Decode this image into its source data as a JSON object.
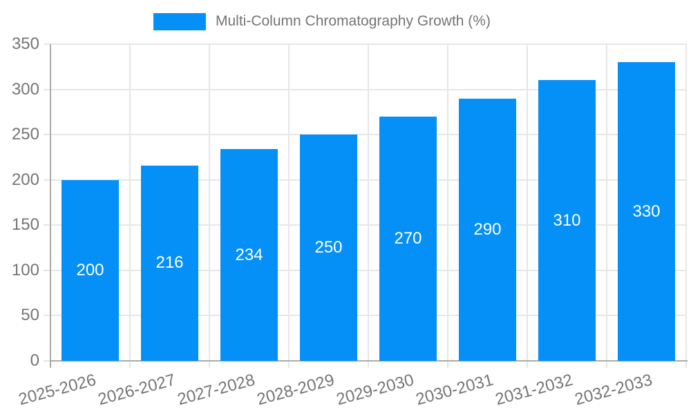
{
  "legend": {
    "label": "Multi-Column Chromatography Growth (%)"
  },
  "chart_data": {
    "type": "bar",
    "title": "Multi-Column Chromatography Growth (%)",
    "categories": [
      "2025-2026",
      "2026-2027",
      "2027-2028",
      "2028-2029",
      "2029-2030",
      "2030-2031",
      "2031-2032",
      "2032-2033"
    ],
    "values": [
      200,
      216,
      234,
      250,
      270,
      290,
      310,
      330
    ],
    "bar_value_labels": [
      "200",
      "216",
      "234",
      "250",
      "270",
      "290",
      "310",
      "330"
    ],
    "ylim": [
      0,
      350
    ],
    "yticks": [
      0,
      50,
      100,
      150,
      200,
      250,
      300,
      350
    ],
    "grid": true,
    "legend_position": "top",
    "x_label_rotation_deg": -15,
    "colors": {
      "bar": "#0590F8",
      "bar_label": "#FFFFFF",
      "axis_text": "#757575",
      "gridline": "#E6E6E6",
      "axis_line": "#AAAAAA",
      "background": "#FFFFFF"
    }
  }
}
